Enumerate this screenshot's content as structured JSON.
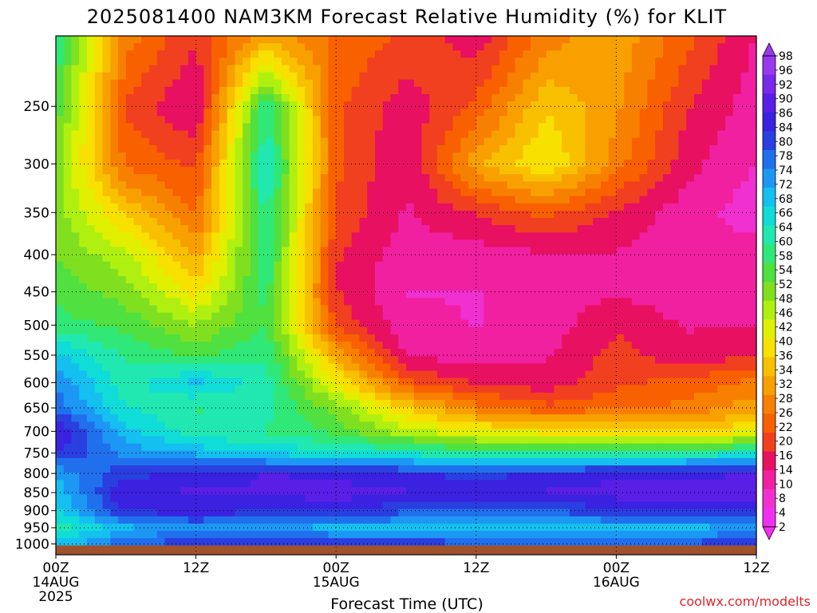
{
  "chart_data": {
    "type": "heatmap",
    "title": "2025081400 NAM3KM Forecast Relative Humidity (%) for KLIT",
    "xlabel": "Forecast Time (UTC)",
    "credit": "coolwx.com/modelts",
    "x_ticks": [
      {
        "hour": 0,
        "lines": [
          "00Z",
          "14AUG",
          "2025"
        ]
      },
      {
        "hour": 12,
        "lines": [
          "12Z"
        ]
      },
      {
        "hour": 24,
        "lines": [
          "00Z",
          "15AUG"
        ]
      },
      {
        "hour": 36,
        "lines": [
          "12Z"
        ]
      },
      {
        "hour": 48,
        "lines": [
          "00Z",
          "16AUG"
        ]
      },
      {
        "hour": 60,
        "lines": [
          "12Z"
        ]
      }
    ],
    "x_range_hours": [
      0,
      60
    ],
    "y_label_values": [
      250,
      300,
      350,
      400,
      450,
      500,
      550,
      600,
      650,
      700,
      750,
      800,
      850,
      900,
      950,
      1000
    ],
    "y_range_hpa": [
      200,
      1035
    ],
    "y_scale": "pressure (log)",
    "grid": "dotted",
    "ground_color": "#a0522d",
    "colorbar": {
      "position": "right",
      "labels": [
        "98",
        "96",
        "92",
        "90",
        "86",
        "84",
        "80",
        "78",
        "74",
        "72",
        "68",
        "66",
        "64",
        "60",
        "58",
        "54",
        "52",
        "48",
        "46",
        "42",
        "40",
        "36",
        "34",
        "32",
        "28",
        "26",
        "22",
        "20",
        "16",
        "14",
        "10",
        "8",
        "4",
        "2"
      ],
      "colors": [
        "#9a38f0",
        "#7a28ea",
        "#5a1fe6",
        "#3a22e0",
        "#2a3fe0",
        "#2070ee",
        "#1c98f4",
        "#14c0f0",
        "#10dcd8",
        "#20e8b0",
        "#30e878",
        "#50e040",
        "#80e020",
        "#b0f010",
        "#e0f000",
        "#f8e000",
        "#f8c000",
        "#f8a000",
        "#f88000",
        "#f86000",
        "#f04020",
        "#e81060",
        "#f020a0",
        "#f030d0",
        "#f030f0"
      ]
    },
    "rh_grid": {
      "levels_hpa": [
        200,
        250,
        300,
        350,
        400,
        450,
        500,
        550,
        600,
        650,
        700,
        750,
        800,
        850,
        900,
        950,
        1000
      ],
      "hours": [
        0,
        6,
        12,
        18,
        24,
        30,
        36,
        42,
        48,
        54,
        60
      ],
      "values": [
        [
          60,
          25,
          15,
          30,
          22,
          18,
          12,
          25,
          30,
          20,
          10
        ],
        [
          55,
          18,
          10,
          60,
          20,
          12,
          20,
          35,
          28,
          15,
          8
        ],
        [
          50,
          22,
          18,
          65,
          20,
          10,
          30,
          40,
          25,
          12,
          6
        ],
        [
          50,
          35,
          22,
          62,
          18,
          10,
          15,
          20,
          14,
          8,
          4
        ],
        [
          52,
          45,
          30,
          60,
          15,
          8,
          8,
          10,
          10,
          8,
          8
        ],
        [
          55,
          50,
          38,
          58,
          15,
          6,
          6,
          8,
          10,
          8,
          10
        ],
        [
          58,
          55,
          48,
          56,
          18,
          8,
          6,
          8,
          14,
          10,
          10
        ],
        [
          70,
          60,
          55,
          60,
          30,
          10,
          8,
          10,
          16,
          12,
          14
        ],
        [
          76,
          62,
          70,
          62,
          40,
          20,
          14,
          12,
          18,
          20,
          24
        ],
        [
          80,
          65,
          60,
          62,
          50,
          35,
          25,
          20,
          22,
          24,
          30
        ],
        [
          90,
          70,
          62,
          60,
          55,
          45,
          40,
          38,
          36,
          34,
          40
        ],
        [
          86,
          76,
          72,
          68,
          66,
          64,
          60,
          60,
          62,
          62,
          64
        ],
        [
          74,
          84,
          86,
          90,
          88,
          86,
          84,
          86,
          88,
          88,
          90
        ],
        [
          70,
          90,
          90,
          90,
          92,
          90,
          88,
          90,
          92,
          92,
          92
        ],
        [
          68,
          86,
          88,
          86,
          86,
          82,
          82,
          82,
          84,
          84,
          86
        ],
        [
          62,
          72,
          76,
          74,
          72,
          72,
          70,
          70,
          72,
          72,
          74
        ],
        [
          70,
          80,
          84,
          84,
          84,
          84,
          82,
          82,
          82,
          82,
          84
        ]
      ]
    }
  }
}
